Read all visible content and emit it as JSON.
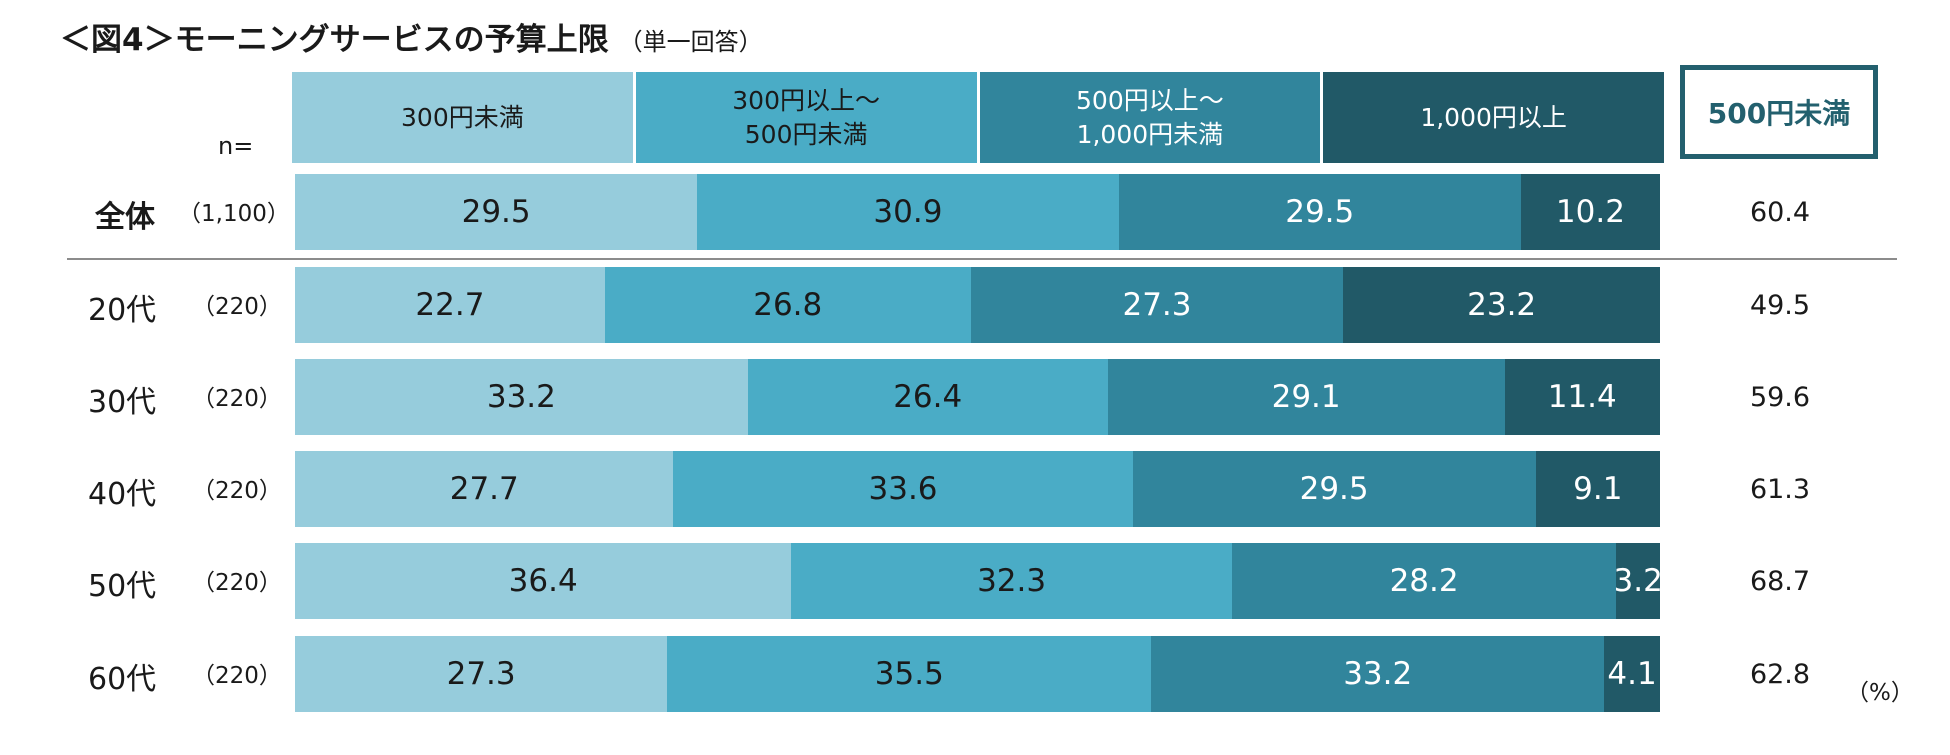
{
  "title": {
    "main": "＜図4＞モーニングサービスの予算上限",
    "sub": "（単一回答）"
  },
  "n_label": "n=",
  "summary_header": "500円未満",
  "unit": "（%）",
  "colors": [
    "#96ccdc",
    "#4aacc6",
    "#31859c",
    "#215967"
  ],
  "text_colors": [
    "#1a1a1a",
    "#1a1a1a",
    "#ffffff",
    "#ffffff"
  ],
  "legend": [
    "300円未満",
    "300円以上～\n500円未満",
    "500円以上～\n1,000円未満",
    "1,000円以上"
  ],
  "chart_data": {
    "type": "bar",
    "orientation": "horizontal",
    "stacked": true,
    "percent": true,
    "title": "＜図4＞モーニングサービスの予算上限（単一回答）",
    "categories": [
      "全体",
      "20代",
      "30代",
      "40代",
      "50代",
      "60代"
    ],
    "n": [
      "（1,100）",
      "（220）",
      "（220）",
      "（220）",
      "（220）",
      "（220）"
    ],
    "series": [
      {
        "name": "300円未満",
        "values": [
          29.5,
          22.7,
          33.2,
          27.7,
          36.4,
          27.3
        ]
      },
      {
        "name": "300円以上～500円未満",
        "values": [
          30.9,
          26.8,
          26.4,
          33.6,
          32.3,
          35.5
        ]
      },
      {
        "name": "500円以上～1,000円未満",
        "values": [
          29.5,
          27.3,
          29.1,
          29.5,
          28.2,
          33.2
        ]
      },
      {
        "name": "1,000円以上",
        "values": [
          10.2,
          23.2,
          11.4,
          9.1,
          3.2,
          4.1
        ]
      }
    ],
    "summary": {
      "name": "500円未満",
      "values": [
        "60.4",
        "49.5",
        "59.6",
        "61.3",
        "68.7",
        "62.8"
      ]
    },
    "xlim": [
      0,
      100
    ]
  }
}
